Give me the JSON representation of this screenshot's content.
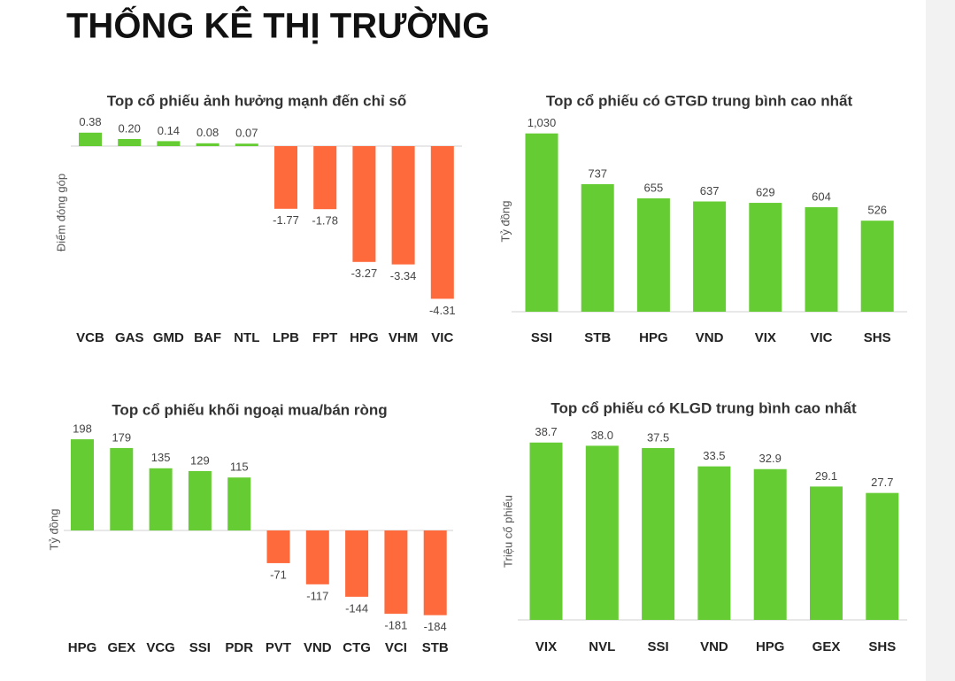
{
  "page_title": "THỐNG KÊ THỊ TRƯỜNG",
  "chart_data": [
    {
      "type": "bar",
      "title": "Top cổ phiếu ảnh hưởng mạnh đến chỉ số",
      "y_label": "Điểm đóng góp",
      "categories": [
        "VCB",
        "GAS",
        "GMD",
        "BAF",
        "NTL",
        "LPB",
        "FPT",
        "HPG",
        "VHM",
        "VIC"
      ],
      "values": [
        0.38,
        0.2,
        0.14,
        0.08,
        0.07,
        -1.77,
        -1.78,
        -3.27,
        -3.34,
        -4.31
      ],
      "value_labels": [
        "0.38",
        "0.20",
        "0.14",
        "0.08",
        "0.07",
        "-1.77",
        "-1.78",
        "-3.27",
        "-3.34",
        "-4.31"
      ],
      "colors": {
        "positive": "#66cc33",
        "negative": "#ff6a3d"
      },
      "ylim": [
        -4.5,
        0.5
      ]
    },
    {
      "type": "bar",
      "title": "Top cổ  phiếu có GTGD trung bình cao nhất",
      "y_label": "Tỷ đồng",
      "categories": [
        "SSI",
        "STB",
        "HPG",
        "VND",
        "VIX",
        "VIC",
        "SHS"
      ],
      "values": [
        1030,
        737,
        655,
        637,
        629,
        604,
        526
      ],
      "value_labels": [
        "1,030",
        "737",
        "655",
        "637",
        "629",
        "604",
        "526"
      ],
      "colors": {
        "positive": "#66cc33",
        "negative": "#ff6a3d"
      },
      "ylim": [
        0,
        1100
      ]
    },
    {
      "type": "bar",
      "title": "Top cổ phiếu khối ngoại mua/bán ròng",
      "y_label": "Tỷ đồng",
      "categories": [
        "HPG",
        "GEX",
        "VCG",
        "SSI",
        "PDR",
        "PVT",
        "VND",
        "CTG",
        "VCI",
        "STB"
      ],
      "values": [
        198,
        179,
        135,
        129,
        115,
        -71,
        -117,
        -144,
        -181,
        -184
      ],
      "colors": {
        "positive": "#66cc33",
        "negative": "#ff6a3d"
      },
      "ylim": [
        -200,
        200
      ]
    },
    {
      "type": "bar",
      "title": "Top cổ  phiếu có KLGD trung bình cao nhất",
      "y_label": "Triệu cổ phiếu",
      "categories": [
        "VIX",
        "NVL",
        "SSI",
        "VND",
        "HPG",
        "GEX",
        "SHS"
      ],
      "values": [
        38.7,
        38.0,
        37.5,
        33.5,
        32.9,
        29.1,
        27.7
      ],
      "value_labels": [
        "38.7",
        "38.0",
        "37.5",
        "33.5",
        "32.9",
        "29.1",
        "27.7"
      ],
      "colors": {
        "positive": "#66cc33",
        "negative": "#ff6a3d"
      },
      "ylim": [
        0,
        40
      ]
    }
  ]
}
